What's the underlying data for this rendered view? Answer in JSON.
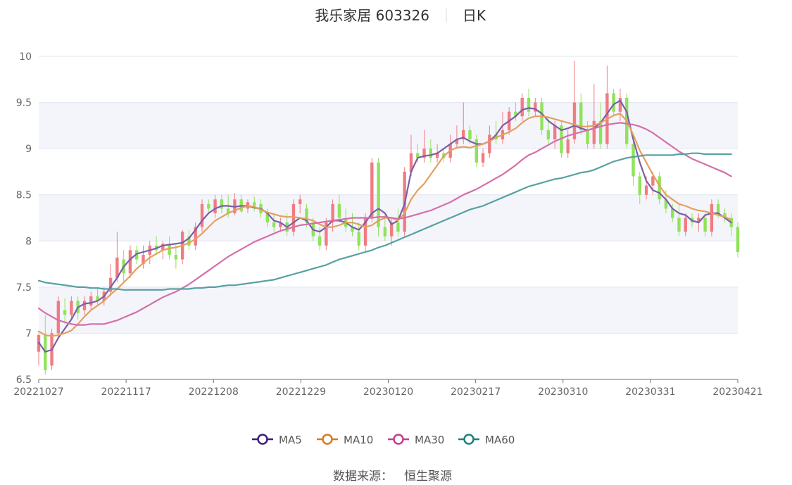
{
  "chart_data": {
    "type": "candlestick",
    "title": "我乐家居 603326",
    "subtitle": "日K",
    "ylim": [
      6.5,
      10
    ],
    "y_ticks": [
      6.5,
      7,
      7.5,
      8,
      8.5,
      9,
      9.5,
      10
    ],
    "x_ticks": [
      "20221027",
      "20221117",
      "20221208",
      "20221229",
      "20230120",
      "20230217",
      "20230310",
      "20230331",
      "20230421"
    ],
    "up_color": "#f07c82",
    "down_color": "#8fe35a",
    "grid": true,
    "legend_position": "bottom-center",
    "series": [
      {
        "name": "MA5",
        "color": "#7b5ea7"
      },
      {
        "name": "MA10",
        "color": "#e3a05e"
      },
      {
        "name": "MA30",
        "color": "#d56fa8"
      },
      {
        "name": "MA60",
        "color": "#58a0a2"
      }
    ],
    "ohlc": [
      {
        "date": "20221027",
        "o": 6.8,
        "h": 7.0,
        "l": 6.65,
        "c": 6.98
      },
      {
        "o": 6.98,
        "h": 7.2,
        "l": 6.55,
        "c": 6.6
      },
      {
        "o": 6.65,
        "h": 7.05,
        "l": 6.6,
        "c": 7.0
      },
      {
        "o": 7.0,
        "h": 7.4,
        "l": 6.95,
        "c": 7.35
      },
      {
        "o": 7.25,
        "h": 7.38,
        "l": 7.1,
        "c": 7.2
      },
      {
        "o": 7.2,
        "h": 7.4,
        "l": 7.15,
        "c": 7.35
      },
      {
        "o": 7.35,
        "h": 7.4,
        "l": 7.15,
        "c": 7.22
      },
      {
        "o": 7.25,
        "h": 7.4,
        "l": 7.2,
        "c": 7.35
      },
      {
        "o": 7.3,
        "h": 7.45,
        "l": 7.25,
        "c": 7.4
      },
      {
        "o": 7.4,
        "h": 7.5,
        "l": 7.3,
        "c": 7.35
      },
      {
        "o": 7.35,
        "h": 7.5,
        "l": 7.3,
        "c": 7.45
      },
      {
        "o": 7.45,
        "h": 7.75,
        "l": 7.4,
        "c": 7.6
      },
      {
        "o": 7.6,
        "h": 8.1,
        "l": 7.55,
        "c": 7.82
      },
      {
        "date": "20221117",
        "o": 7.8,
        "h": 7.9,
        "l": 7.55,
        "c": 7.65
      },
      {
        "o": 7.65,
        "h": 7.95,
        "l": 7.6,
        "c": 7.9
      },
      {
        "o": 7.9,
        "h": 7.95,
        "l": 7.75,
        "c": 7.8
      },
      {
        "o": 7.75,
        "h": 7.95,
        "l": 7.7,
        "c": 7.85
      },
      {
        "o": 7.85,
        "h": 8.0,
        "l": 7.75,
        "c": 7.95
      },
      {
        "o": 7.95,
        "h": 8.05,
        "l": 7.85,
        "c": 7.9
      },
      {
        "o": 7.9,
        "h": 8.0,
        "l": 7.8,
        "c": 7.97
      },
      {
        "o": 7.97,
        "h": 8.05,
        "l": 7.8,
        "c": 7.85
      },
      {
        "o": 7.85,
        "h": 7.98,
        "l": 7.7,
        "c": 7.8
      },
      {
        "o": 7.8,
        "h": 8.12,
        "l": 7.75,
        "c": 8.1
      },
      {
        "o": 8.05,
        "h": 8.12,
        "l": 7.9,
        "c": 7.95
      },
      {
        "o": 7.95,
        "h": 8.2,
        "l": 7.9,
        "c": 8.15
      },
      {
        "o": 8.15,
        "h": 8.45,
        "l": 8.1,
        "c": 8.4
      },
      {
        "o": 8.4,
        "h": 8.45,
        "l": 8.3,
        "c": 8.35
      },
      {
        "date": "20221208",
        "o": 8.3,
        "h": 8.5,
        "l": 8.25,
        "c": 8.45
      },
      {
        "o": 8.45,
        "h": 8.5,
        "l": 8.3,
        "c": 8.35
      },
      {
        "o": 8.35,
        "h": 8.5,
        "l": 8.25,
        "c": 8.3
      },
      {
        "o": 8.3,
        "h": 8.52,
        "l": 8.28,
        "c": 8.45
      },
      {
        "o": 8.45,
        "h": 8.5,
        "l": 8.3,
        "c": 8.32
      },
      {
        "o": 8.35,
        "h": 8.45,
        "l": 8.3,
        "c": 8.42
      },
      {
        "o": 8.42,
        "h": 8.48,
        "l": 8.32,
        "c": 8.38
      },
      {
        "o": 8.4,
        "h": 8.45,
        "l": 8.25,
        "c": 8.3
      },
      {
        "o": 8.3,
        "h": 8.35,
        "l": 8.15,
        "c": 8.2
      },
      {
        "o": 8.2,
        "h": 8.3,
        "l": 8.1,
        "c": 8.15
      },
      {
        "o": 8.15,
        "h": 8.25,
        "l": 8.1,
        "c": 8.2
      },
      {
        "o": 8.2,
        "h": 8.3,
        "l": 8.05,
        "c": 8.1
      },
      {
        "o": 8.1,
        "h": 8.45,
        "l": 8.05,
        "c": 8.4
      },
      {
        "o": 8.4,
        "h": 8.5,
        "l": 8.3,
        "c": 8.45
      },
      {
        "date": "20221229",
        "o": 8.35,
        "h": 8.4,
        "l": 8.15,
        "c": 8.2
      },
      {
        "o": 8.2,
        "h": 8.25,
        "l": 8.0,
        "c": 8.05
      },
      {
        "o": 8.05,
        "h": 8.15,
        "l": 7.9,
        "c": 7.95
      },
      {
        "o": 7.95,
        "h": 8.25,
        "l": 7.9,
        "c": 8.2
      },
      {
        "o": 8.2,
        "h": 8.45,
        "l": 8.1,
        "c": 8.4
      },
      {
        "o": 8.4,
        "h": 8.5,
        "l": 8.2,
        "c": 8.25
      },
      {
        "o": 8.25,
        "h": 8.35,
        "l": 8.1,
        "c": 8.15
      },
      {
        "o": 8.15,
        "h": 8.3,
        "l": 8.05,
        "c": 8.1
      },
      {
        "o": 8.1,
        "h": 8.2,
        "l": 7.9,
        "c": 7.95
      },
      {
        "o": 7.95,
        "h": 8.3,
        "l": 7.88,
        "c": 8.25
      },
      {
        "o": 8.25,
        "h": 8.9,
        "l": 8.2,
        "c": 8.85
      },
      {
        "o": 8.85,
        "h": 8.9,
        "l": 8.05,
        "c": 8.15
      },
      {
        "o": 8.15,
        "h": 8.3,
        "l": 8.0,
        "c": 8.05
      },
      {
        "date": "20230120",
        "o": 8.05,
        "h": 8.25,
        "l": 7.95,
        "c": 8.2
      },
      {
        "o": 8.2,
        "h": 8.35,
        "l": 8.05,
        "c": 8.1
      },
      {
        "o": 8.1,
        "h": 8.8,
        "l": 8.05,
        "c": 8.75
      },
      {
        "o": 8.75,
        "h": 9.15,
        "l": 8.7,
        "c": 8.95
      },
      {
        "o": 8.95,
        "h": 9.05,
        "l": 8.85,
        "c": 8.9
      },
      {
        "o": 8.9,
        "h": 9.2,
        "l": 8.85,
        "c": 9.0
      },
      {
        "o": 9.0,
        "h": 9.1,
        "l": 8.85,
        "c": 8.9
      },
      {
        "o": 8.9,
        "h": 9.05,
        "l": 8.85,
        "c": 8.95
      },
      {
        "o": 8.95,
        "h": 9.0,
        "l": 8.85,
        "c": 8.9
      },
      {
        "o": 8.9,
        "h": 9.15,
        "l": 8.85,
        "c": 9.05
      },
      {
        "o": 9.05,
        "h": 9.25,
        "l": 9.0,
        "c": 9.1
      },
      {
        "o": 9.1,
        "h": 9.5,
        "l": 9.05,
        "c": 9.2
      },
      {
        "o": 9.2,
        "h": 9.25,
        "l": 9.05,
        "c": 9.1
      },
      {
        "date": "20230217",
        "o": 9.1,
        "h": 9.15,
        "l": 8.8,
        "c": 8.85
      },
      {
        "o": 8.85,
        "h": 9.0,
        "l": 8.8,
        "c": 8.95
      },
      {
        "o": 8.95,
        "h": 9.25,
        "l": 8.9,
        "c": 9.15
      },
      {
        "o": 9.15,
        "h": 9.3,
        "l": 9.05,
        "c": 9.1
      },
      {
        "o": 9.1,
        "h": 9.4,
        "l": 9.05,
        "c": 9.2
      },
      {
        "o": 9.2,
        "h": 9.45,
        "l": 9.15,
        "c": 9.4
      },
      {
        "o": 9.4,
        "h": 9.5,
        "l": 9.3,
        "c": 9.35
      },
      {
        "o": 9.35,
        "h": 9.6,
        "l": 9.3,
        "c": 9.55
      },
      {
        "o": 9.55,
        "h": 9.65,
        "l": 9.35,
        "c": 9.4
      },
      {
        "o": 9.4,
        "h": 9.55,
        "l": 9.35,
        "c": 9.5
      },
      {
        "o": 9.5,
        "h": 9.55,
        "l": 9.15,
        "c": 9.2
      },
      {
        "o": 9.2,
        "h": 9.35,
        "l": 9.05,
        "c": 9.1
      },
      {
        "o": 9.1,
        "h": 9.3,
        "l": 9.0,
        "c": 9.25
      },
      {
        "date": "20230310",
        "o": 9.25,
        "h": 9.3,
        "l": 8.9,
        "c": 8.95
      },
      {
        "o": 8.95,
        "h": 9.2,
        "l": 8.9,
        "c": 9.1
      },
      {
        "o": 9.1,
        "h": 9.95,
        "l": 9.05,
        "c": 9.5
      },
      {
        "o": 9.5,
        "h": 9.6,
        "l": 9.15,
        "c": 9.2
      },
      {
        "o": 9.2,
        "h": 9.3,
        "l": 9.0,
        "c": 9.05
      },
      {
        "o": 9.05,
        "h": 9.7,
        "l": 9.0,
        "c": 9.3
      },
      {
        "o": 9.3,
        "h": 9.5,
        "l": 9.0,
        "c": 9.05
      },
      {
        "o": 9.05,
        "h": 9.9,
        "l": 9.0,
        "c": 9.6
      },
      {
        "o": 9.6,
        "h": 9.65,
        "l": 9.35,
        "c": 9.4
      },
      {
        "o": 9.4,
        "h": 9.65,
        "l": 9.3,
        "c": 9.55
      },
      {
        "date": "20230331",
        "o": 9.55,
        "h": 9.6,
        "l": 9.0,
        "c": 9.05
      },
      {
        "o": 9.05,
        "h": 9.1,
        "l": 8.6,
        "c": 8.7
      },
      {
        "o": 8.7,
        "h": 8.75,
        "l": 8.4,
        "c": 8.5
      },
      {
        "o": 8.5,
        "h": 8.7,
        "l": 8.45,
        "c": 8.6
      },
      {
        "o": 8.6,
        "h": 8.75,
        "l": 8.5,
        "c": 8.7
      },
      {
        "o": 8.7,
        "h": 8.75,
        "l": 8.4,
        "c": 8.45
      },
      {
        "o": 8.45,
        "h": 8.55,
        "l": 8.3,
        "c": 8.35
      },
      {
        "o": 8.35,
        "h": 8.4,
        "l": 8.2,
        "c": 8.25
      },
      {
        "o": 8.25,
        "h": 8.4,
        "l": 8.05,
        "c": 8.1
      },
      {
        "o": 8.1,
        "h": 8.3,
        "l": 8.05,
        "c": 8.25
      },
      {
        "o": 8.25,
        "h": 8.3,
        "l": 8.15,
        "c": 8.2
      },
      {
        "o": 8.2,
        "h": 8.3,
        "l": 8.1,
        "c": 8.25
      },
      {
        "o": 8.25,
        "h": 8.3,
        "l": 8.05,
        "c": 8.1
      },
      {
        "o": 8.1,
        "h": 8.45,
        "l": 8.05,
        "c": 8.4
      },
      {
        "o": 8.4,
        "h": 8.45,
        "l": 8.25,
        "c": 8.3
      },
      {
        "o": 8.3,
        "h": 8.35,
        "l": 8.2,
        "c": 8.25
      },
      {
        "o": 8.25,
        "h": 8.3,
        "l": 8.05,
        "c": 8.15
      },
      {
        "date": "20230421",
        "o": 8.15,
        "h": 8.2,
        "l": 7.82,
        "c": 7.88
      }
    ],
    "ma_values": {
      "MA5": [
        6.9,
        6.8,
        6.82,
        6.95,
        7.05,
        7.15,
        7.28,
        7.32,
        7.33,
        7.35,
        7.4,
        7.5,
        7.6,
        7.72,
        7.8,
        7.86,
        7.88,
        7.9,
        7.92,
        7.95,
        7.96,
        7.97,
        7.98,
        8.03,
        8.12,
        8.22,
        8.3,
        8.35,
        8.38,
        8.38,
        8.37,
        8.38,
        8.38,
        8.36,
        8.35,
        8.3,
        8.22,
        8.2,
        8.15,
        8.2,
        8.25,
        8.22,
        8.12,
        8.1,
        8.15,
        8.22,
        8.22,
        8.2,
        8.15,
        8.12,
        8.2,
        8.3,
        8.35,
        8.3,
        8.18,
        8.22,
        8.4,
        8.75,
        8.9,
        8.92,
        8.93,
        8.95,
        9.0,
        9.05,
        9.1,
        9.12,
        9.08,
        9.05,
        9.05,
        9.08,
        9.15,
        9.25,
        9.3,
        9.35,
        9.42,
        9.44,
        9.43,
        9.38,
        9.3,
        9.25,
        9.2,
        9.22,
        9.25,
        9.22,
        9.2,
        9.22,
        9.28,
        9.38,
        9.48,
        9.52,
        9.4,
        9.1,
        8.85,
        8.65,
        8.55,
        8.52,
        8.45,
        8.35,
        8.3,
        8.28,
        8.22,
        8.2,
        8.28,
        8.3,
        8.3,
        8.25,
        8.2
      ],
      "MA10": [
        7.02,
        6.98,
        6.97,
        6.98,
        7.0,
        7.03,
        7.1,
        7.18,
        7.25,
        7.3,
        7.35,
        7.42,
        7.48,
        7.55,
        7.62,
        7.7,
        7.76,
        7.82,
        7.86,
        7.9,
        7.92,
        7.93,
        7.95,
        7.98,
        8.02,
        8.08,
        8.15,
        8.22,
        8.26,
        8.3,
        8.33,
        8.36,
        8.38,
        8.37,
        8.34,
        8.31,
        8.29,
        8.27,
        8.26,
        8.26,
        8.25,
        8.24,
        8.22,
        8.18,
        8.15,
        8.15,
        8.17,
        8.2,
        8.2,
        8.18,
        8.15,
        8.17,
        8.22,
        8.25,
        8.25,
        8.22,
        8.3,
        8.45,
        8.55,
        8.62,
        8.72,
        8.82,
        8.92,
        8.98,
        9.01,
        9.02,
        9.01,
        9.03,
        9.05,
        9.08,
        9.12,
        9.15,
        9.18,
        9.22,
        9.28,
        9.33,
        9.35,
        9.35,
        9.34,
        9.32,
        9.3,
        9.28,
        9.26,
        9.24,
        9.24,
        9.25,
        9.28,
        9.32,
        9.36,
        9.38,
        9.3,
        9.15,
        8.98,
        8.85,
        8.72,
        8.6,
        8.5,
        8.45,
        8.4,
        8.38,
        8.35,
        8.33,
        8.32,
        8.3,
        8.28,
        8.26,
        8.23
      ],
      "MA30": [
        7.27,
        7.22,
        7.18,
        7.14,
        7.12,
        7.1,
        7.09,
        7.09,
        7.1,
        7.1,
        7.1,
        7.12,
        7.14,
        7.17,
        7.2,
        7.23,
        7.27,
        7.31,
        7.35,
        7.39,
        7.42,
        7.45,
        7.49,
        7.53,
        7.58,
        7.63,
        7.68,
        7.73,
        7.78,
        7.83,
        7.87,
        7.91,
        7.95,
        7.99,
        8.02,
        8.05,
        8.08,
        8.11,
        8.13,
        8.15,
        8.17,
        8.18,
        8.19,
        8.2,
        8.21,
        8.22,
        8.23,
        8.24,
        8.25,
        8.25,
        8.25,
        8.25,
        8.26,
        8.26,
        8.25,
        8.24,
        8.25,
        8.27,
        8.29,
        8.31,
        8.33,
        8.36,
        8.39,
        8.42,
        8.46,
        8.5,
        8.53,
        8.56,
        8.6,
        8.64,
        8.68,
        8.72,
        8.77,
        8.82,
        8.88,
        8.93,
        8.96,
        9.0,
        9.04,
        9.08,
        9.11,
        9.14,
        9.16,
        9.18,
        9.2,
        9.22,
        9.24,
        9.26,
        9.27,
        9.28,
        9.27,
        9.26,
        9.24,
        9.21,
        9.17,
        9.12,
        9.07,
        9.02,
        8.97,
        8.93,
        8.89,
        8.86,
        8.83,
        8.8,
        8.77,
        8.74,
        8.7
      ],
      "MA60": [
        7.57,
        7.55,
        7.54,
        7.53,
        7.52,
        7.51,
        7.5,
        7.5,
        7.49,
        7.49,
        7.48,
        7.48,
        7.48,
        7.47,
        7.47,
        7.47,
        7.47,
        7.47,
        7.47,
        7.47,
        7.48,
        7.48,
        7.48,
        7.48,
        7.49,
        7.49,
        7.5,
        7.5,
        7.51,
        7.52,
        7.52,
        7.53,
        7.54,
        7.55,
        7.56,
        7.57,
        7.58,
        7.6,
        7.62,
        7.64,
        7.66,
        7.68,
        7.7,
        7.72,
        7.74,
        7.77,
        7.8,
        7.82,
        7.84,
        7.86,
        7.88,
        7.9,
        7.93,
        7.95,
        7.98,
        8.01,
        8.04,
        8.07,
        8.1,
        8.13,
        8.16,
        8.19,
        8.22,
        8.25,
        8.28,
        8.31,
        8.34,
        8.36,
        8.38,
        8.41,
        8.44,
        8.47,
        8.5,
        8.53,
        8.56,
        8.59,
        8.61,
        8.63,
        8.65,
        8.67,
        8.68,
        8.7,
        8.72,
        8.74,
        8.75,
        8.77,
        8.8,
        8.83,
        8.86,
        8.88,
        8.9,
        8.91,
        8.92,
        8.93,
        8.93,
        8.93,
        8.93,
        8.93,
        8.94,
        8.94,
        8.95,
        8.95,
        8.94,
        8.94,
        8.94,
        8.94,
        8.94
      ]
    }
  },
  "source": {
    "label": "数据来源：",
    "value": "恒生聚源"
  }
}
